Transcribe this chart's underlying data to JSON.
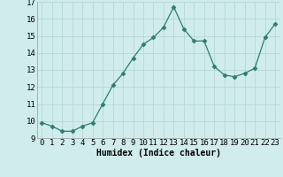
{
  "x": [
    0,
    1,
    2,
    3,
    4,
    5,
    6,
    7,
    8,
    9,
    10,
    11,
    12,
    13,
    14,
    15,
    16,
    17,
    18,
    19,
    20,
    21,
    22,
    23
  ],
  "y": [
    9.9,
    9.7,
    9.4,
    9.4,
    9.7,
    9.9,
    11.0,
    12.1,
    12.8,
    13.7,
    14.5,
    14.9,
    15.5,
    16.7,
    15.4,
    14.7,
    14.7,
    13.2,
    12.7,
    12.6,
    12.8,
    13.1,
    14.9,
    15.7
  ],
  "line_color": "#2e7d6e",
  "marker": "D",
  "marker_size": 2.5,
  "bg_color": "#d0ecec",
  "grid_color": "#b8d8d8",
  "xlabel": "Humidex (Indice chaleur)",
  "ylim": [
    9,
    17
  ],
  "yticks": [
    9,
    10,
    11,
    12,
    13,
    14,
    15,
    16,
    17
  ],
  "xticks": [
    0,
    1,
    2,
    3,
    4,
    5,
    6,
    7,
    8,
    9,
    10,
    11,
    12,
    13,
    14,
    15,
    16,
    17,
    18,
    19,
    20,
    21,
    22,
    23
  ],
  "xlabel_fontsize": 7,
  "tick_fontsize": 6.5
}
